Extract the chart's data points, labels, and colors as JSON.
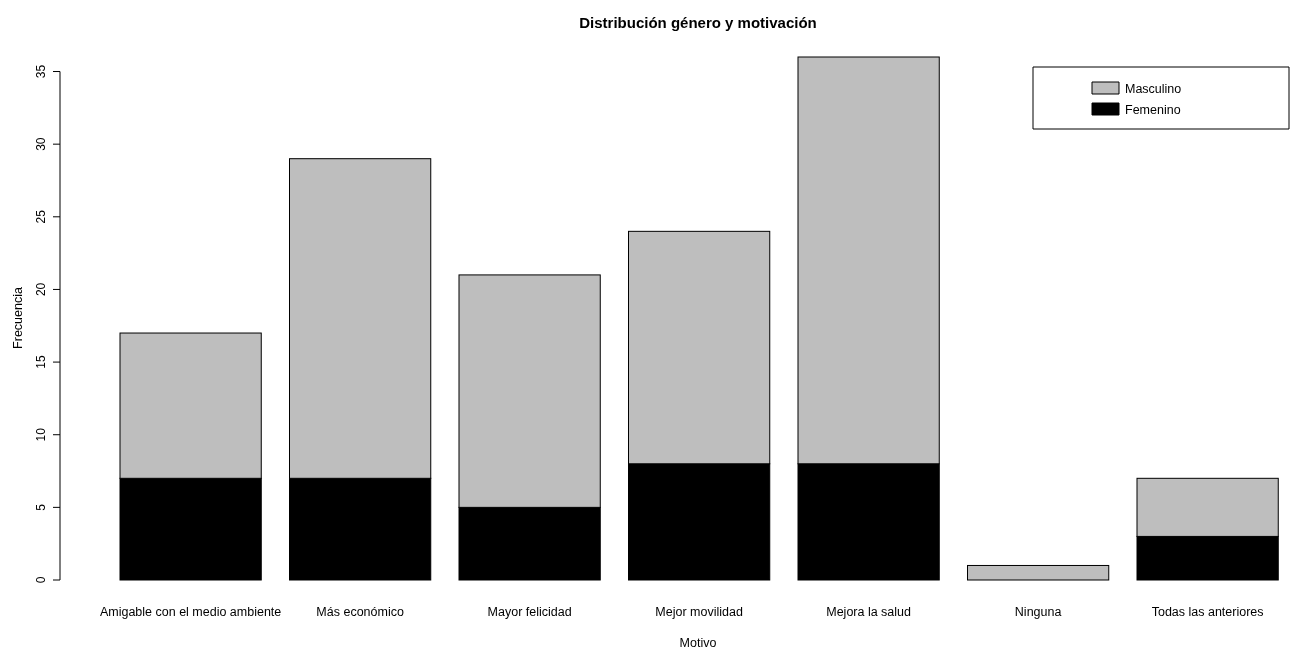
{
  "chart_data": {
    "type": "bar",
    "title": "Distribución género y motivación",
    "xlabel": "Motivo",
    "ylabel": "Frecuencia",
    "categories": [
      "Amigable con el medio ambiente",
      "Más económico",
      "Mayor felicidad",
      "Mejor movilidad",
      "Mejora la salud",
      "Ninguna",
      "Todas las anteriores"
    ],
    "stacked": true,
    "series": [
      {
        "name": "Femenino",
        "color": "#000000",
        "values": [
          7,
          7,
          5,
          8,
          8,
          0,
          3
        ]
      },
      {
        "name": "Masculino",
        "color": "#bebebe",
        "values": [
          10,
          22,
          16,
          16,
          28,
          1,
          4
        ]
      }
    ],
    "ylim": [
      0,
      36
    ],
    "yticks": [
      0,
      5,
      10,
      15,
      20,
      25,
      30,
      35
    ],
    "grid": false,
    "legend": "top right"
  }
}
